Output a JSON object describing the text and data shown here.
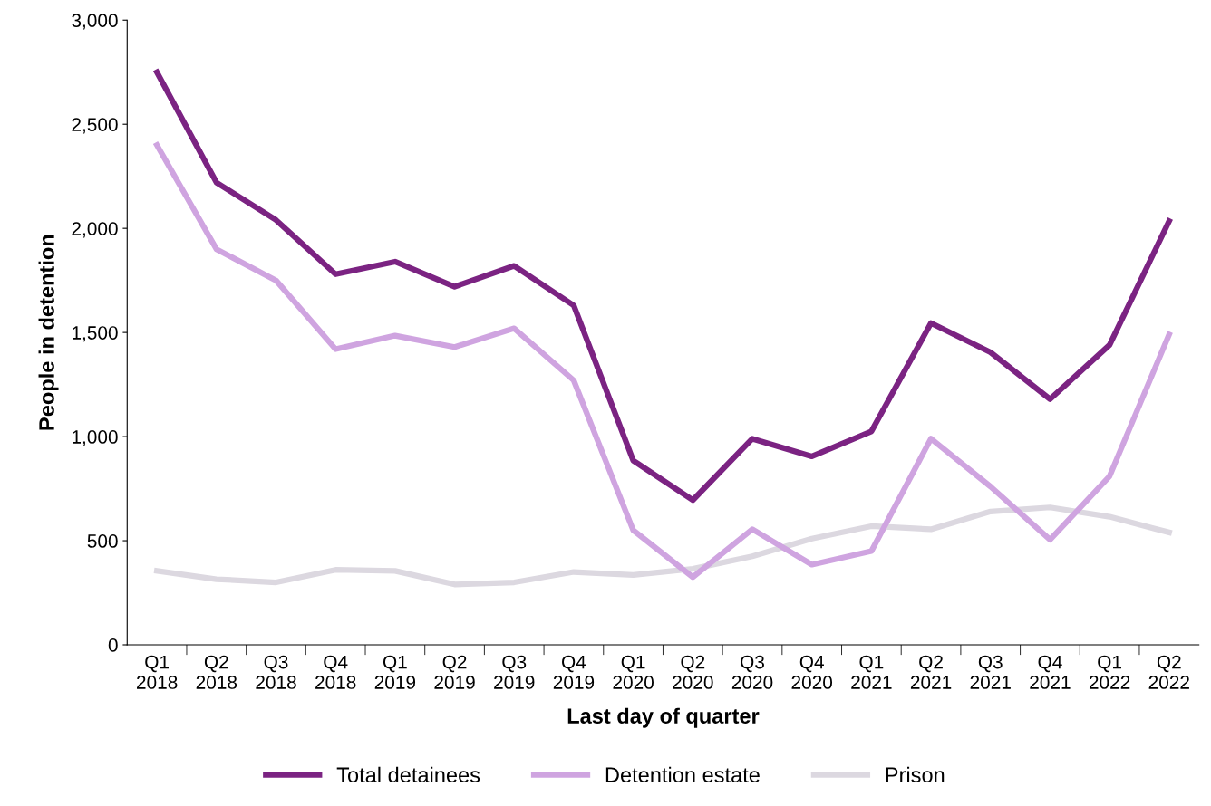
{
  "chart_data": {
    "type": "line",
    "xlabel": "Last day of quarter",
    "ylabel": "People in detention",
    "categories": [
      "Q1\n2018",
      "Q2\n2018",
      "Q3\n2018",
      "Q4\n2018",
      "Q1\n2019",
      "Q2\n2019",
      "Q3\n2019",
      "Q4\n2019",
      "Q1\n2020",
      "Q2\n2020",
      "Q3\n2020",
      "Q4\n2020",
      "Q1\n2021",
      "Q2\n2021",
      "Q3\n2021",
      "Q4\n2021",
      "Q1\n2022",
      "Q2\n2022"
    ],
    "series": [
      {
        "name": "Total detainees",
        "color": "#7b2382",
        "values": [
          2750,
          2220,
          2040,
          1780,
          1840,
          1720,
          1820,
          1630,
          885,
          695,
          990,
          905,
          1025,
          1545,
          1405,
          1180,
          1440,
          2035
        ]
      },
      {
        "name": "Detention estate",
        "color": "#cfa4e0",
        "values": [
          2400,
          1900,
          1750,
          1420,
          1485,
          1430,
          1520,
          1270,
          550,
          325,
          555,
          385,
          450,
          990,
          760,
          505,
          810,
          1490
        ]
      },
      {
        "name": "Prison",
        "color": "#dcd8e0",
        "values": [
          355,
          315,
          300,
          360,
          355,
          290,
          300,
          350,
          335,
          365,
          425,
          510,
          570,
          555,
          640,
          660,
          615,
          540
        ]
      }
    ],
    "ylim": [
      0,
      3000
    ],
    "yticks": [
      0,
      {
        "value": 500,
        "label": "500"
      },
      {
        "value": 1000,
        "label": "1,000"
      },
      {
        "value": 1500,
        "label": "1,500"
      },
      {
        "value": 2000,
        "label": "2,000"
      },
      {
        "value": 2500,
        "label": "2,500"
      },
      {
        "value": 3000,
        "label": "3,000"
      }
    ],
    "grid": false,
    "legend": "bottom",
    "marker": "none",
    "line_style": "solid"
  }
}
